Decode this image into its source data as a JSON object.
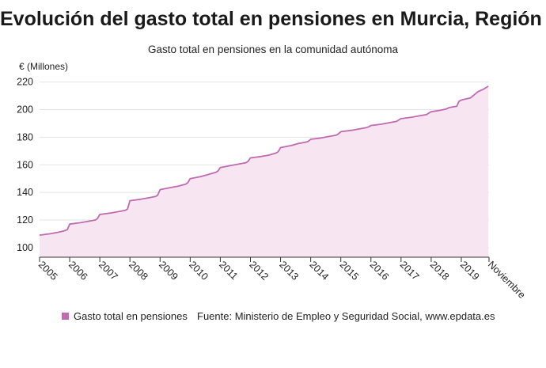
{
  "header": {
    "title": "Evolución del gasto total en pensiones en Murcia, Región de",
    "subtitle": "Gasto total en pensiones en la comunidad autónoma"
  },
  "legend": {
    "series_label": "Gasto total en pensiones",
    "color": "#c06bb0"
  },
  "source": "Fuente: Ministerio de Empleo y Seguridad Social, www.epdata.es",
  "chart_data": {
    "type": "area",
    "title": "Evolución del gasto total en pensiones en Murcia, Región de",
    "subtitle": "Gasto total en pensiones en la comunidad autónoma",
    "ylabel": "€ (Millones)",
    "xlabel": "",
    "ylim": [
      93,
      225
    ],
    "y_ticks": [
      100,
      120,
      140,
      160,
      180,
      200,
      220
    ],
    "x_ticks": [
      "2005",
      "2006",
      "2007",
      "2008",
      "2009",
      "2010",
      "2011",
      "2012",
      "2013",
      "2014",
      "2015",
      "2016",
      "2017",
      "2018",
      "2019",
      "Noviembre"
    ],
    "grid": true,
    "legend_position": "bottom",
    "line_color": "#c06bb0",
    "fill_color": "#f7e6f2",
    "series": [
      {
        "name": "Gasto total en pensiones",
        "x": [
          2005.0,
          2005.35,
          2005.6,
          2005.8,
          2005.92,
          2006.0,
          2006.35,
          2006.6,
          2006.85,
          2006.92,
          2007.0,
          2007.35,
          2007.6,
          2007.85,
          2007.92,
          2008.0,
          2008.35,
          2008.6,
          2008.85,
          2008.92,
          2009.0,
          2009.35,
          2009.6,
          2009.85,
          2009.92,
          2010.0,
          2010.35,
          2010.6,
          2010.85,
          2010.92,
          2011.0,
          2011.35,
          2011.6,
          2011.85,
          2011.92,
          2012.0,
          2012.35,
          2012.6,
          2012.85,
          2012.92,
          2013.0,
          2013.35,
          2013.6,
          2013.85,
          2013.92,
          2014.0,
          2014.35,
          2014.6,
          2014.85,
          2014.92,
          2015.0,
          2015.35,
          2015.6,
          2015.85,
          2015.92,
          2016.0,
          2016.35,
          2016.6,
          2016.85,
          2016.92,
          2017.0,
          2017.35,
          2017.6,
          2017.85,
          2017.92,
          2018.0,
          2018.3,
          2018.5,
          2018.6,
          2018.85,
          2018.92,
          2019.0,
          2019.3,
          2019.55,
          2019.75,
          2019.9
        ],
        "values": [
          109,
          110,
          111,
          112,
          113,
          117,
          118,
          119,
          120,
          121,
          124,
          125,
          126,
          127,
          128,
          134,
          135,
          136,
          137,
          138,
          142,
          143.5,
          144.5,
          146,
          147,
          150,
          151.5,
          153,
          154.5,
          155.5,
          158,
          159.5,
          160.5,
          161.5,
          162.5,
          165,
          166,
          167,
          168.5,
          169.5,
          172.5,
          174,
          175.5,
          176.5,
          177,
          178.5,
          179.5,
          180.5,
          181.5,
          182.5,
          184,
          185,
          186,
          187,
          187.5,
          188.5,
          189.5,
          190.5,
          191.5,
          192.5,
          193.5,
          194.5,
          195.5,
          196.5,
          197.5,
          198.5,
          199.5,
          200.5,
          201.5,
          202.5,
          206,
          207,
          208.5,
          213,
          215,
          217
        ]
      }
    ]
  }
}
